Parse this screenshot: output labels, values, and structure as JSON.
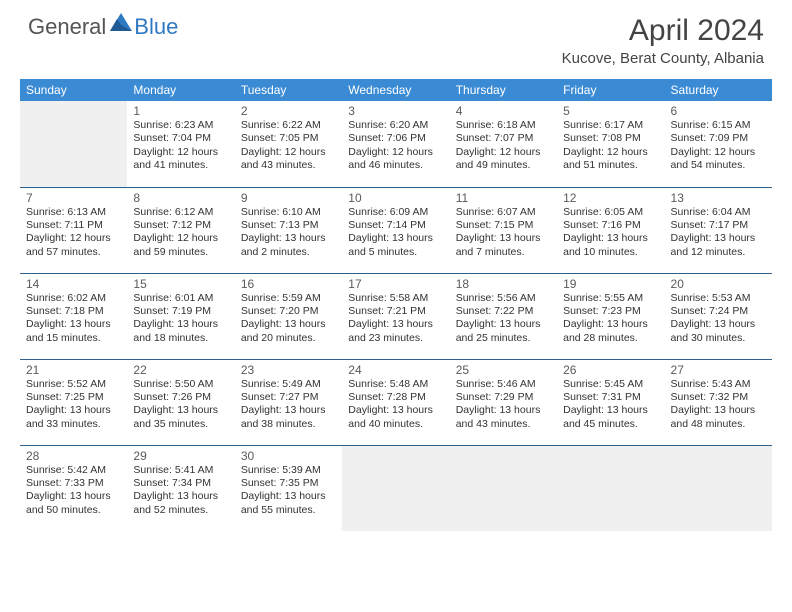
{
  "logo": {
    "general": "General",
    "blue": "Blue"
  },
  "title": "April 2024",
  "location": "Kucove, Berat County, Albania",
  "colors": {
    "header_bg": "#3b8bd4",
    "header_text": "#ffffff",
    "cell_border": "#2f5f8f",
    "text": "#333333",
    "daynum": "#5a5a5a",
    "empty_bg": "#f0f0f0",
    "logo_blue": "#2f79c2",
    "page_bg": "#ffffff"
  },
  "day_headers": [
    "Sunday",
    "Monday",
    "Tuesday",
    "Wednesday",
    "Thursday",
    "Friday",
    "Saturday"
  ],
  "weeks": [
    [
      {
        "empty": true
      },
      {
        "day": "1",
        "sunrise": "Sunrise: 6:23 AM",
        "sunset": "Sunset: 7:04 PM",
        "d1": "Daylight: 12 hours",
        "d2": "and 41 minutes."
      },
      {
        "day": "2",
        "sunrise": "Sunrise: 6:22 AM",
        "sunset": "Sunset: 7:05 PM",
        "d1": "Daylight: 12 hours",
        "d2": "and 43 minutes."
      },
      {
        "day": "3",
        "sunrise": "Sunrise: 6:20 AM",
        "sunset": "Sunset: 7:06 PM",
        "d1": "Daylight: 12 hours",
        "d2": "and 46 minutes."
      },
      {
        "day": "4",
        "sunrise": "Sunrise: 6:18 AM",
        "sunset": "Sunset: 7:07 PM",
        "d1": "Daylight: 12 hours",
        "d2": "and 49 minutes."
      },
      {
        "day": "5",
        "sunrise": "Sunrise: 6:17 AM",
        "sunset": "Sunset: 7:08 PM",
        "d1": "Daylight: 12 hours",
        "d2": "and 51 minutes."
      },
      {
        "day": "6",
        "sunrise": "Sunrise: 6:15 AM",
        "sunset": "Sunset: 7:09 PM",
        "d1": "Daylight: 12 hours",
        "d2": "and 54 minutes."
      }
    ],
    [
      {
        "day": "7",
        "sunrise": "Sunrise: 6:13 AM",
        "sunset": "Sunset: 7:11 PM",
        "d1": "Daylight: 12 hours",
        "d2": "and 57 minutes."
      },
      {
        "day": "8",
        "sunrise": "Sunrise: 6:12 AM",
        "sunset": "Sunset: 7:12 PM",
        "d1": "Daylight: 12 hours",
        "d2": "and 59 minutes."
      },
      {
        "day": "9",
        "sunrise": "Sunrise: 6:10 AM",
        "sunset": "Sunset: 7:13 PM",
        "d1": "Daylight: 13 hours",
        "d2": "and 2 minutes."
      },
      {
        "day": "10",
        "sunrise": "Sunrise: 6:09 AM",
        "sunset": "Sunset: 7:14 PM",
        "d1": "Daylight: 13 hours",
        "d2": "and 5 minutes."
      },
      {
        "day": "11",
        "sunrise": "Sunrise: 6:07 AM",
        "sunset": "Sunset: 7:15 PM",
        "d1": "Daylight: 13 hours",
        "d2": "and 7 minutes."
      },
      {
        "day": "12",
        "sunrise": "Sunrise: 6:05 AM",
        "sunset": "Sunset: 7:16 PM",
        "d1": "Daylight: 13 hours",
        "d2": "and 10 minutes."
      },
      {
        "day": "13",
        "sunrise": "Sunrise: 6:04 AM",
        "sunset": "Sunset: 7:17 PM",
        "d1": "Daylight: 13 hours",
        "d2": "and 12 minutes."
      }
    ],
    [
      {
        "day": "14",
        "sunrise": "Sunrise: 6:02 AM",
        "sunset": "Sunset: 7:18 PM",
        "d1": "Daylight: 13 hours",
        "d2": "and 15 minutes."
      },
      {
        "day": "15",
        "sunrise": "Sunrise: 6:01 AM",
        "sunset": "Sunset: 7:19 PM",
        "d1": "Daylight: 13 hours",
        "d2": "and 18 minutes."
      },
      {
        "day": "16",
        "sunrise": "Sunrise: 5:59 AM",
        "sunset": "Sunset: 7:20 PM",
        "d1": "Daylight: 13 hours",
        "d2": "and 20 minutes."
      },
      {
        "day": "17",
        "sunrise": "Sunrise: 5:58 AM",
        "sunset": "Sunset: 7:21 PM",
        "d1": "Daylight: 13 hours",
        "d2": "and 23 minutes."
      },
      {
        "day": "18",
        "sunrise": "Sunrise: 5:56 AM",
        "sunset": "Sunset: 7:22 PM",
        "d1": "Daylight: 13 hours",
        "d2": "and 25 minutes."
      },
      {
        "day": "19",
        "sunrise": "Sunrise: 5:55 AM",
        "sunset": "Sunset: 7:23 PM",
        "d1": "Daylight: 13 hours",
        "d2": "and 28 minutes."
      },
      {
        "day": "20",
        "sunrise": "Sunrise: 5:53 AM",
        "sunset": "Sunset: 7:24 PM",
        "d1": "Daylight: 13 hours",
        "d2": "and 30 minutes."
      }
    ],
    [
      {
        "day": "21",
        "sunrise": "Sunrise: 5:52 AM",
        "sunset": "Sunset: 7:25 PM",
        "d1": "Daylight: 13 hours",
        "d2": "and 33 minutes."
      },
      {
        "day": "22",
        "sunrise": "Sunrise: 5:50 AM",
        "sunset": "Sunset: 7:26 PM",
        "d1": "Daylight: 13 hours",
        "d2": "and 35 minutes."
      },
      {
        "day": "23",
        "sunrise": "Sunrise: 5:49 AM",
        "sunset": "Sunset: 7:27 PM",
        "d1": "Daylight: 13 hours",
        "d2": "and 38 minutes."
      },
      {
        "day": "24",
        "sunrise": "Sunrise: 5:48 AM",
        "sunset": "Sunset: 7:28 PM",
        "d1": "Daylight: 13 hours",
        "d2": "and 40 minutes."
      },
      {
        "day": "25",
        "sunrise": "Sunrise: 5:46 AM",
        "sunset": "Sunset: 7:29 PM",
        "d1": "Daylight: 13 hours",
        "d2": "and 43 minutes."
      },
      {
        "day": "26",
        "sunrise": "Sunrise: 5:45 AM",
        "sunset": "Sunset: 7:31 PM",
        "d1": "Daylight: 13 hours",
        "d2": "and 45 minutes."
      },
      {
        "day": "27",
        "sunrise": "Sunrise: 5:43 AM",
        "sunset": "Sunset: 7:32 PM",
        "d1": "Daylight: 13 hours",
        "d2": "and 48 minutes."
      }
    ],
    [
      {
        "day": "28",
        "sunrise": "Sunrise: 5:42 AM",
        "sunset": "Sunset: 7:33 PM",
        "d1": "Daylight: 13 hours",
        "d2": "and 50 minutes."
      },
      {
        "day": "29",
        "sunrise": "Sunrise: 5:41 AM",
        "sunset": "Sunset: 7:34 PM",
        "d1": "Daylight: 13 hours",
        "d2": "and 52 minutes."
      },
      {
        "day": "30",
        "sunrise": "Sunrise: 5:39 AM",
        "sunset": "Sunset: 7:35 PM",
        "d1": "Daylight: 13 hours",
        "d2": "and 55 minutes."
      },
      {
        "empty": true
      },
      {
        "empty": true
      },
      {
        "empty": true
      },
      {
        "empty": true
      }
    ]
  ]
}
